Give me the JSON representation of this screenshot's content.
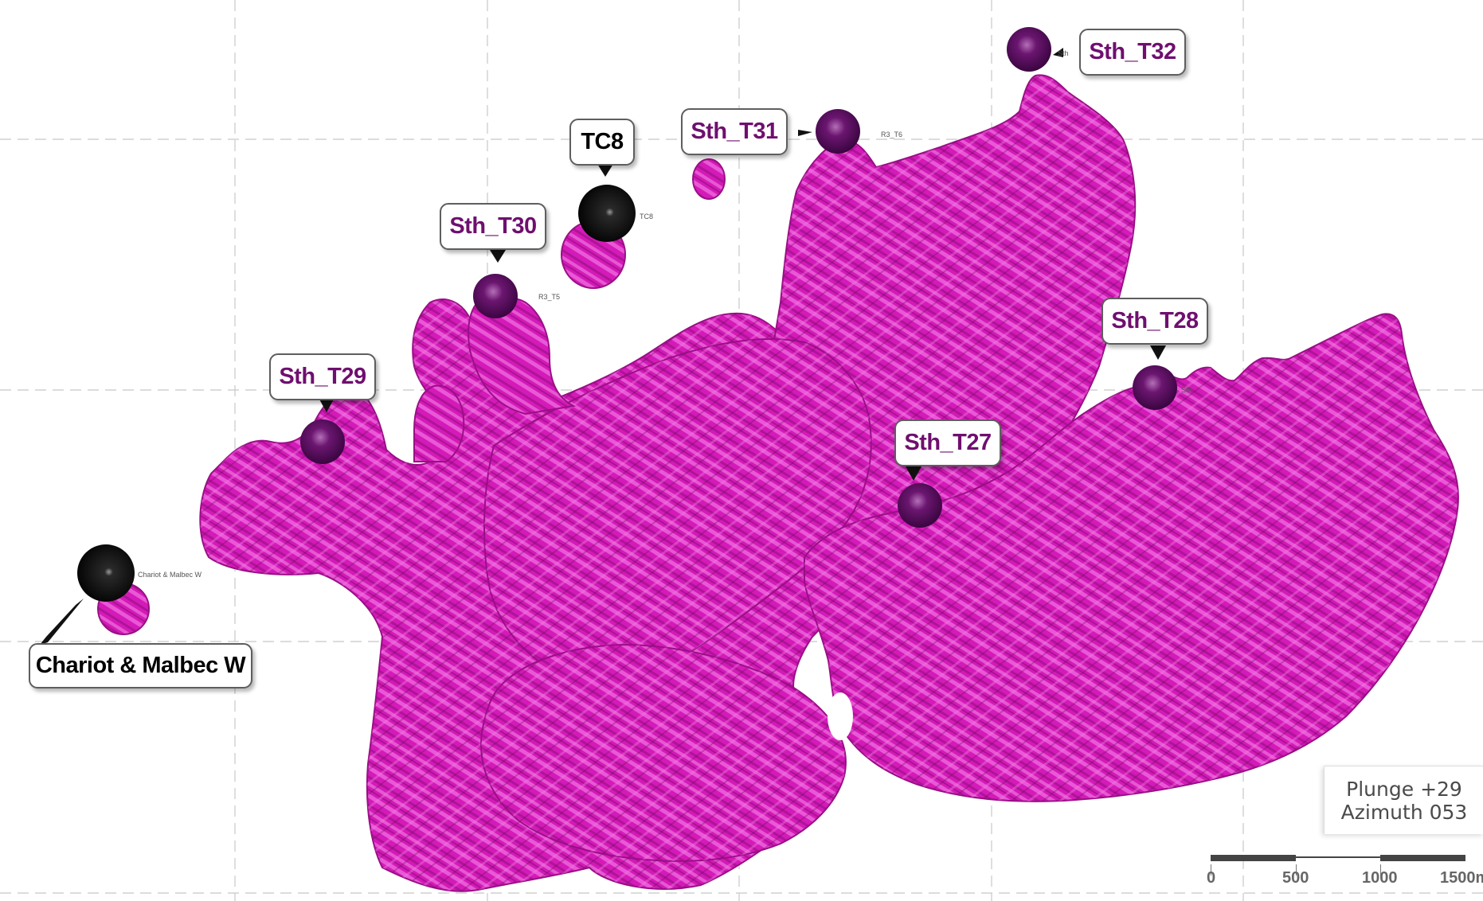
{
  "targets": [
    {
      "label": "Sth_T32",
      "small_label": "Sth"
    },
    {
      "label": "Sth_T31",
      "small_label": "R3_T6"
    },
    {
      "label": "Sth_T30",
      "small_label": "R3_T5"
    },
    {
      "label": "Sth_T29",
      "small_label": ""
    },
    {
      "label": "Sth_T28",
      "small_label": "Sth"
    },
    {
      "label": "Sth_T27",
      "small_label": ""
    }
  ],
  "deposits": [
    {
      "label": "TC8",
      "small_label": "TC8"
    },
    {
      "label": "Chariot & Malbec W",
      "small_label": "Chariot & Malbec W"
    }
  ],
  "view_info": {
    "plunge": "Plunge +29",
    "azimuth": "Azimuth 053"
  },
  "scale_bar": {
    "labels": [
      "0",
      "500",
      "1000",
      "1500m"
    ]
  },
  "colors": {
    "body": "#d21ab6",
    "body_light": "#f06ce0",
    "body_dark": "#7a0c68",
    "target_sphere": "#5a0a5e",
    "deposit_sphere": "#050505",
    "callout_text": "#6f0f6f",
    "grid": "#cfcfcf"
  }
}
